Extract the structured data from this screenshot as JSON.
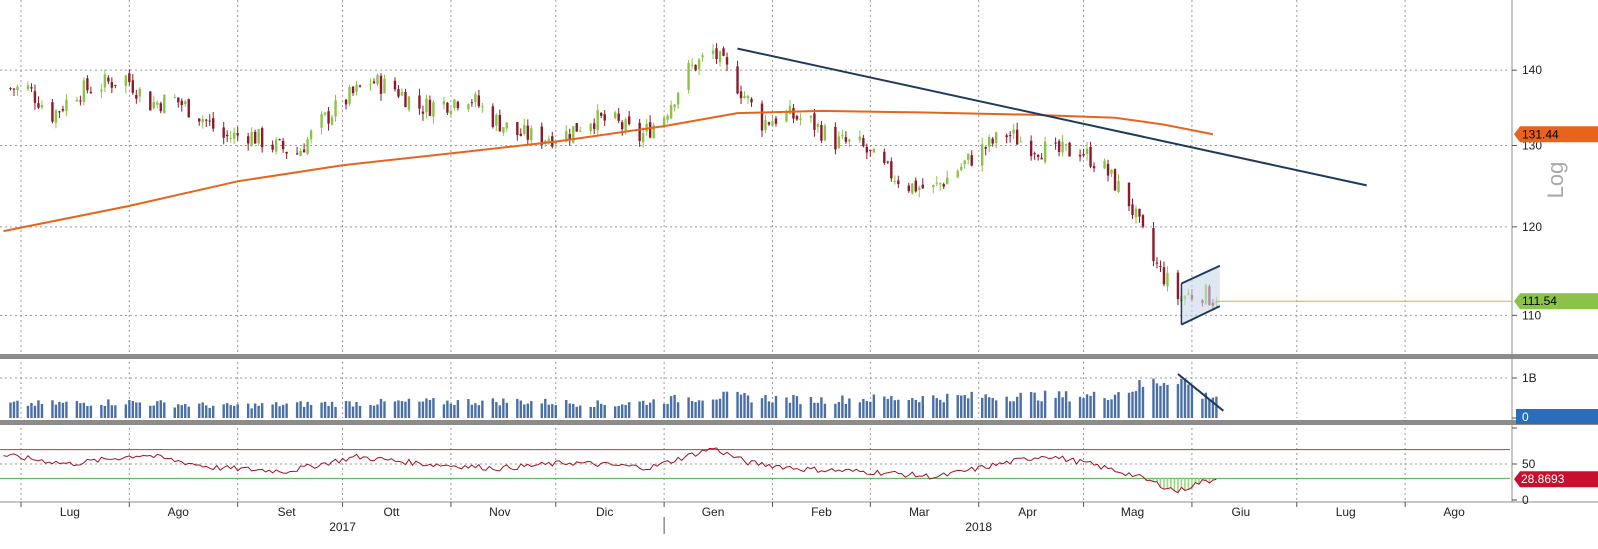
{
  "chart_data": [
    {
      "type": "candlestick",
      "panel": "price",
      "ylabel": "",
      "scale": "log",
      "ylim": [
        106,
        150
      ],
      "yticks": [
        110,
        120,
        130,
        140
      ],
      "side_label": "Log",
      "x_range": [
        "2017-06-25",
        "2018-08-31"
      ],
      "candle_period": "daily",
      "last_close": "111.54",
      "moving_average_last": "131.44",
      "colors": {
        "up": "#8bc34a",
        "down": "#8b1a2b",
        "moving_average": "#e8641c",
        "trendline": "#1e3a5f",
        "last_price_line": "#f5a623",
        "channel_fill": "#c9d8ea"
      },
      "closes": [
        {
          "date": "2017-07-03",
          "close": 137.5
        },
        {
          "date": "2017-07-10",
          "close": 134.0
        },
        {
          "date": "2017-07-17",
          "close": 137.0
        },
        {
          "date": "2017-07-24",
          "close": 138.0
        },
        {
          "date": "2017-07-31",
          "close": 139.0
        },
        {
          "date": "2017-08-07",
          "close": 135.5
        },
        {
          "date": "2017-08-14",
          "close": 136.0
        },
        {
          "date": "2017-08-21",
          "close": 134.0
        },
        {
          "date": "2017-08-28",
          "close": 131.0
        },
        {
          "date": "2017-09-04",
          "close": 131.5
        },
        {
          "date": "2017-09-11",
          "close": 130.0
        },
        {
          "date": "2017-09-18",
          "close": 129.0
        },
        {
          "date": "2017-09-25",
          "close": 133.0
        },
        {
          "date": "2017-10-02",
          "close": 136.0
        },
        {
          "date": "2017-10-09",
          "close": 138.5
        },
        {
          "date": "2017-10-16",
          "close": 137.5
        },
        {
          "date": "2017-10-23",
          "close": 135.0
        },
        {
          "date": "2017-10-30",
          "close": 135.5
        },
        {
          "date": "2017-11-06",
          "close": 136.5
        },
        {
          "date": "2017-11-13",
          "close": 133.5
        },
        {
          "date": "2017-11-20",
          "close": 131.5
        },
        {
          "date": "2017-11-27",
          "close": 131.0
        },
        {
          "date": "2017-12-04",
          "close": 131.5
        },
        {
          "date": "2017-12-11",
          "close": 133.5
        },
        {
          "date": "2017-12-18",
          "close": 133.0
        },
        {
          "date": "2017-12-25",
          "close": 131.0
        },
        {
          "date": "2018-01-01",
          "close": 134.0
        },
        {
          "date": "2018-01-08",
          "close": 140.0
        },
        {
          "date": "2018-01-15",
          "close": 142.5
        },
        {
          "date": "2018-01-22",
          "close": 138.0
        },
        {
          "date": "2018-01-29",
          "close": 133.0
        },
        {
          "date": "2018-02-05",
          "close": 134.0
        },
        {
          "date": "2018-02-12",
          "close": 133.0
        },
        {
          "date": "2018-02-19",
          "close": 130.5
        },
        {
          "date": "2018-02-26",
          "close": 130.0
        },
        {
          "date": "2018-03-05",
          "close": 127.0
        },
        {
          "date": "2018-03-12",
          "close": 125.0
        },
        {
          "date": "2018-03-19",
          "close": 124.5
        },
        {
          "date": "2018-03-26",
          "close": 127.0
        },
        {
          "date": "2018-04-02",
          "close": 129.5
        },
        {
          "date": "2018-04-09",
          "close": 131.5
        },
        {
          "date": "2018-04-16",
          "close": 130.0
        },
        {
          "date": "2018-04-23",
          "close": 129.0
        },
        {
          "date": "2018-04-30",
          "close": 129.5
        },
        {
          "date": "2018-05-07",
          "close": 127.0
        },
        {
          "date": "2018-05-14",
          "close": 123.0
        },
        {
          "date": "2018-05-21",
          "close": 116.0
        },
        {
          "date": "2018-05-28",
          "close": 112.0
        },
        {
          "date": "2018-06-04",
          "close": 112.5
        },
        {
          "date": "2018-06-08",
          "close": 111.54
        }
      ],
      "moving_average": [
        {
          "date": "2017-06-26",
          "value": 119.5
        },
        {
          "date": "2017-08-01",
          "value": 122.5
        },
        {
          "date": "2017-09-01",
          "value": 125.5
        },
        {
          "date": "2017-10-01",
          "value": 127.5
        },
        {
          "date": "2017-11-01",
          "value": 129.0
        },
        {
          "date": "2017-12-01",
          "value": 130.5
        },
        {
          "date": "2018-01-01",
          "value": 132.5
        },
        {
          "date": "2018-01-22",
          "value": 134.2
        },
        {
          "date": "2018-02-15",
          "value": 134.5
        },
        {
          "date": "2018-03-15",
          "value": 134.3
        },
        {
          "date": "2018-04-15",
          "value": 134.0
        },
        {
          "date": "2018-05-10",
          "value": 133.6
        },
        {
          "date": "2018-05-24",
          "value": 132.7
        },
        {
          "date": "2018-06-07",
          "value": 131.44
        }
      ],
      "trendline": [
        {
          "date": "2018-01-22",
          "value": 143.0
        },
        {
          "date": "2018-07-21",
          "value": 125.0
        }
      ],
      "channel": {
        "upper": [
          {
            "date": "2018-05-29",
            "value": 113.5
          },
          {
            "date": "2018-06-09",
            "value": 115.5
          }
        ],
        "lower": [
          {
            "date": "2018-05-29",
            "value": 109.0
          },
          {
            "date": "2018-06-09",
            "value": 111.0
          }
        ]
      }
    },
    {
      "type": "bar",
      "panel": "volume",
      "ylabel": "",
      "ylim": [
        0,
        1.3
      ],
      "yticks": [
        0,
        1
      ],
      "ytick_labels": [
        "0",
        "1B"
      ],
      "last_value": "0",
      "colors": {
        "bars": "#4a6fa5",
        "last_value_badge": "#2a6ebb"
      },
      "volume_billions_weekly": [
        {
          "date": "2017-07-03",
          "value": 0.35
        },
        {
          "date": "2017-07-31",
          "value": 0.4
        },
        {
          "date": "2017-08-28",
          "value": 0.3
        },
        {
          "date": "2017-09-25",
          "value": 0.36
        },
        {
          "date": "2017-10-23",
          "value": 0.4
        },
        {
          "date": "2017-11-20",
          "value": 0.42
        },
        {
          "date": "2017-12-18",
          "value": 0.34
        },
        {
          "date": "2018-01-15",
          "value": 0.55
        },
        {
          "date": "2018-02-12",
          "value": 0.45
        },
        {
          "date": "2018-03-12",
          "value": 0.5
        },
        {
          "date": "2018-04-09",
          "value": 0.55
        },
        {
          "date": "2018-05-07",
          "value": 0.55
        },
        {
          "date": "2018-05-28",
          "value": 1.05
        },
        {
          "date": "2018-06-04",
          "value": 0.55
        }
      ],
      "trendline": [
        {
          "date": "2018-05-28",
          "value": 1.1
        },
        {
          "date": "2018-06-10",
          "value": 0.18
        }
      ]
    },
    {
      "type": "line",
      "panel": "oscillator",
      "ylabel": "",
      "ylim": [
        0,
        100
      ],
      "yticks": [
        0,
        50
      ],
      "ytick_labels": [
        "0",
        "50"
      ],
      "reference_lines": [
        70,
        30
      ],
      "last_value": "28.8693",
      "colors": {
        "line": "#a0132a",
        "upper_ref": "#c0392b",
        "lower_ref": "#4caf50",
        "oversold_fill": "#9bd77b",
        "last_value_badge": "#c8102e"
      },
      "points": [
        {
          "date": "2017-06-26",
          "value": 62
        },
        {
          "date": "2017-07-15",
          "value": 50
        },
        {
          "date": "2017-08-05",
          "value": 63
        },
        {
          "date": "2017-08-25",
          "value": 45
        },
        {
          "date": "2017-09-15",
          "value": 40
        },
        {
          "date": "2017-10-05",
          "value": 60
        },
        {
          "date": "2017-10-25",
          "value": 50
        },
        {
          "date": "2017-11-15",
          "value": 44
        },
        {
          "date": "2017-12-05",
          "value": 52
        },
        {
          "date": "2017-12-28",
          "value": 45
        },
        {
          "date": "2018-01-15",
          "value": 72
        },
        {
          "date": "2018-01-25",
          "value": 52
        },
        {
          "date": "2018-02-10",
          "value": 43
        },
        {
          "date": "2018-03-05",
          "value": 38
        },
        {
          "date": "2018-03-20",
          "value": 32
        },
        {
          "date": "2018-04-05",
          "value": 48
        },
        {
          "date": "2018-04-20",
          "value": 62
        },
        {
          "date": "2018-05-01",
          "value": 52
        },
        {
          "date": "2018-05-15",
          "value": 35
        },
        {
          "date": "2018-05-28",
          "value": 12
        },
        {
          "date": "2018-06-03",
          "value": 24
        },
        {
          "date": "2018-06-08",
          "value": 28.87
        }
      ]
    }
  ],
  "x_axis": {
    "months": [
      {
        "label": "Lug",
        "date": "2017-07-15"
      },
      {
        "label": "Ago",
        "date": "2017-08-15"
      },
      {
        "label": "Set",
        "date": "2017-09-15"
      },
      {
        "label": "Ott",
        "date": "2017-10-15"
      },
      {
        "label": "Nov",
        "date": "2017-11-15"
      },
      {
        "label": "Dic",
        "date": "2017-12-15"
      },
      {
        "label": "Gen",
        "date": "2018-01-15"
      },
      {
        "label": "Feb",
        "date": "2018-02-15"
      },
      {
        "label": "Mar",
        "date": "2018-03-15"
      },
      {
        "label": "Apr",
        "date": "2018-04-15"
      },
      {
        "label": "Mag",
        "date": "2018-05-15"
      },
      {
        "label": "Giu",
        "date": "2018-06-15"
      },
      {
        "label": "Lug",
        "date": "2018-07-15"
      },
      {
        "label": "Ago",
        "date": "2018-08-15"
      }
    ],
    "years": [
      {
        "label": "2017",
        "date": "2017-10-01"
      },
      {
        "label": "2018",
        "date": "2018-04-01"
      }
    ],
    "year_divider": "2018-01-01"
  }
}
